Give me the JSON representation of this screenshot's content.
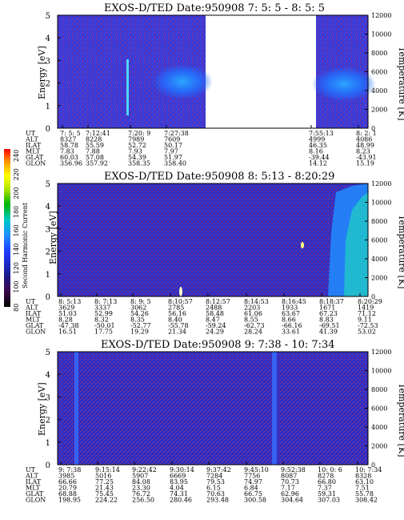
{
  "colorbar": {
    "label": "Second Harmonic Current",
    "ticks": [
      "80",
      "100",
      "120",
      "140",
      "160",
      "180",
      "200",
      "220",
      "240"
    ],
    "colors": [
      "#000000",
      "#3b0a4a",
      "#1a1a8a",
      "#1e3cff",
      "#1e8cff",
      "#00c8c8",
      "#00b400",
      "#b4e600",
      "#ffff00",
      "#ff9600",
      "#ff0000"
    ]
  },
  "panels": [
    {
      "title": "EXOS-D/TED   Date:950908  7: 5: 5 - 8: 5: 5",
      "ylabel": "Energy [eV]",
      "y2label": "Temperature [K]",
      "yticks": [
        "0",
        "1",
        "2",
        "3",
        "4",
        "5"
      ],
      "y2ticks": [
        "0",
        "2000",
        "4000",
        "6000",
        "8000",
        "10000",
        "12000"
      ],
      "rows": [
        {
          "name": "UT",
          "values": [
            "7: 5: 5",
            "7:12:41",
            "7:20: 9",
            "7:27:38",
            "7:55:13",
            "8: 2: 1"
          ]
        },
        {
          "name": "ALT",
          "values": [
            "8327",
            "8228",
            "7989",
            "7609",
            "4999",
            "4086"
          ]
        },
        {
          "name": "ILAT",
          "values": [
            "58.78",
            "55.59",
            "52.72",
            "50.17",
            "46.35",
            "48.99"
          ]
        },
        {
          "name": "MLT",
          "values": [
            "7.83",
            "7.88",
            "7.93",
            "7.97",
            "8.16",
            "8.23"
          ]
        },
        {
          "name": "GLAT",
          "values": [
            "60.03",
            "57.08",
            "54.39",
            "51.97",
            "-39.44",
            "-43.91"
          ]
        },
        {
          "name": "GLON",
          "values": [
            "356.96",
            "357.92",
            "358.35",
            "358.40",
            "14.12",
            "15.19"
          ]
        }
      ]
    },
    {
      "title": "EXOS-D/TED   Date:950908  8: 5:13 - 8:20:29",
      "ylabel": "Energy [eV]",
      "y2label": "Temperature [K]",
      "yticks": [
        "0",
        "1",
        "2",
        "3",
        "4",
        "5"
      ],
      "y2ticks": [
        "0",
        "2000",
        "4000",
        "6000",
        "8000",
        "10000",
        "12000"
      ],
      "rows": [
        {
          "name": "UT",
          "values": [
            "8: 5:13",
            "8: 7:13",
            "8: 9: 5",
            "8:10:57",
            "8:12:57",
            "8:14:53",
            "8:16:45",
            "8:18:37",
            "8:20:29"
          ]
        },
        {
          "name": "ALT",
          "values": [
            "3629",
            "3337",
            "3062",
            "2785",
            "2488",
            "2203",
            "1933",
            "1671",
            "1419"
          ]
        },
        {
          "name": "ILAT",
          "values": [
            "51.03",
            "52.99",
            "54.26",
            "56.16",
            "58.48",
            "61.06",
            "63.67",
            "67.23",
            "71.12"
          ]
        },
        {
          "name": "MLT",
          "values": [
            "8.28",
            "8.32",
            "8.35",
            "8.40",
            "8.47",
            "8.55",
            "8.66",
            "8.83",
            "9.11"
          ]
        },
        {
          "name": "GLAT",
          "values": [
            "-47.38",
            "-50.01",
            "-52.77",
            "-55.78",
            "-59.24",
            "-62.73",
            "-66.16",
            "-69.51",
            "-72.53"
          ]
        },
        {
          "name": "GLON",
          "values": [
            "16.51",
            "17.75",
            "19.29",
            "21.34",
            "24.29",
            "28.24",
            "33.61",
            "41.39",
            "53.02"
          ]
        }
      ]
    },
    {
      "title": "EXOS-D/TED   Date:950908  9: 7:38 - 10: 7:34",
      "ylabel": "Energy [eV]",
      "y2label": "Temperature [K]",
      "yticks": [
        "0",
        "1",
        "2",
        "3",
        "4",
        "5"
      ],
      "y2ticks": [
        "0",
        "2000",
        "4000",
        "6000",
        "8000",
        "10000",
        "12000"
      ],
      "rows": [
        {
          "name": "UT",
          "values": [
            "9: 7:38",
            "9:15:14",
            "9:22:42",
            "9:30:14",
            "9:37:42",
            "9:45:10",
            "9:52:38",
            "10: 0: 6",
            "10: 7:34"
          ]
        },
        {
          "name": "ALT",
          "values": [
            "3985",
            "5016",
            "5907",
            "6669",
            "7284",
            "7756",
            "8087",
            "8278",
            "8328"
          ]
        },
        {
          "name": "ILAT",
          "values": [
            "66.66",
            "77.25",
            "84.08",
            "83.95",
            "79.53",
            "74.97",
            "70.73",
            "66.80",
            "63.10"
          ]
        },
        {
          "name": "MLT",
          "values": [
            "20.79",
            "21.43",
            "23.30",
            "4.04",
            "6.15",
            "6.84",
            "7.17",
            "7.37",
            "7.51"
          ]
        },
        {
          "name": "GLAT",
          "values": [
            "68.88",
            "75.45",
            "76.72",
            "74.31",
            "70.63",
            "66.75",
            "62.96",
            "59.31",
            "55.78"
          ]
        },
        {
          "name": "GLON",
          "values": [
            "198.95",
            "224.22",
            "256.50",
            "280.46",
            "293.48",
            "300.58",
            "304.64",
            "307.03",
            "308.42"
          ]
        }
      ]
    }
  ],
  "chart_data": [
    {
      "type": "heatmap",
      "title": "EXOS-D/TED   Date:950908  7: 5: 5 - 8: 5: 5",
      "ylabel": "Energy [eV]",
      "ylim": [
        0,
        5
      ],
      "y2label": "Temperature [K]",
      "y2lim": [
        0,
        12000
      ],
      "x": [
        "7: 5: 5",
        "7:12:41",
        "7:20: 9",
        "7:27:38",
        "7:55:13",
        "8: 2: 1"
      ],
      "data_gap": [
        "7:38",
        "7:53"
      ]
    },
    {
      "type": "heatmap",
      "title": "EXOS-D/TED   Date:950908  8: 5:13 - 8:20:29",
      "ylabel": "Energy [eV]",
      "ylim": [
        0,
        5
      ],
      "y2label": "Temperature [K]",
      "y2lim": [
        0,
        12000
      ],
      "x": [
        "8: 5:13",
        "8: 7:13",
        "8: 9: 5",
        "8:10:57",
        "8:12:57",
        "8:14:53",
        "8:16:45",
        "8:18:37",
        "8:20:29"
      ]
    },
    {
      "type": "heatmap",
      "title": "EXOS-D/TED   Date:950908  9: 7:38 - 10: 7:34",
      "ylabel": "Energy [eV]",
      "ylim": [
        0,
        5
      ],
      "y2label": "Temperature [K]",
      "y2lim": [
        0,
        12000
      ],
      "x": [
        "9: 7:38",
        "9:15:14",
        "9:22:42",
        "9:30:14",
        "9:37:42",
        "9:45:10",
        "9:52:38",
        "10: 0: 6",
        "10: 7:34"
      ]
    }
  ]
}
